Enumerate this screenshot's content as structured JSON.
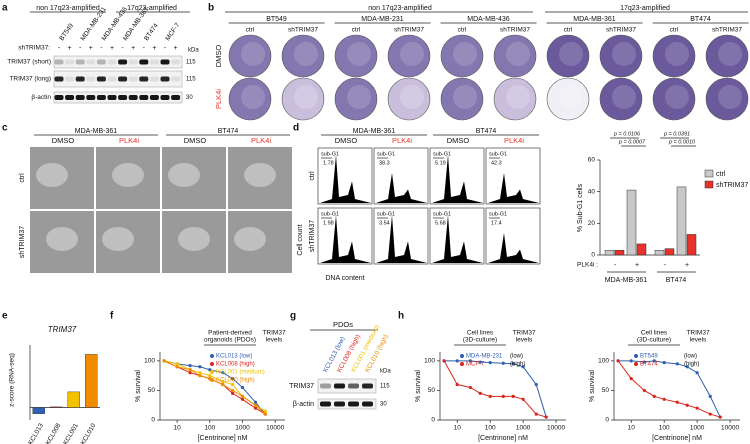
{
  "panel_letters": [
    "a",
    "b",
    "c",
    "d",
    "e",
    "f",
    "g",
    "h"
  ],
  "a": {
    "groups": [
      "non 17q23-amplified",
      "17q23-amplified"
    ],
    "cell_lines": [
      "BT549",
      "MDA-MB-231",
      "MDA-MB-436",
      "MDA-MB-361",
      "BT474",
      "MCF-7"
    ],
    "sh_label": "shTRIM37:",
    "sh_signs": [
      "-",
      "+",
      "-",
      "+",
      "-",
      "+",
      "-",
      "+",
      "-",
      "+",
      "-",
      "+"
    ],
    "kda": "kDa",
    "rows": [
      "TRIM37 (short)",
      "TRIM37 (long)",
      "β-actin"
    ],
    "markers": [
      "115",
      "115",
      "30"
    ]
  },
  "b": {
    "groups": [
      "non 17q23-amplified",
      "17q23-amplified"
    ],
    "cell_lines": [
      "BT549",
      "MDA-MB-231",
      "MDA-MB-436",
      "MDA-MB-361",
      "BT474"
    ],
    "conditions": [
      "ctrl",
      "shTRIM37"
    ],
    "rows": [
      "DMSO",
      "PLK4i"
    ]
  },
  "c": {
    "cell_lines": [
      "MDA-MB-361",
      "BT474"
    ],
    "treatments": [
      "DMSO",
      "PLK4i"
    ],
    "rows": [
      "ctrl",
      "shTRIM37"
    ]
  },
  "d": {
    "cell_lines": [
      "MDA-MB-361",
      "BT474"
    ],
    "treatments": [
      "DMSO",
      "PLK4i"
    ],
    "rows": [
      "ctrl",
      "shTRIM37"
    ],
    "gate": "sub-G1",
    "percentages": [
      [
        1.78,
        38.3,
        5.19,
        42.3
      ],
      [
        1.98,
        3.54,
        5.68,
        17.4
      ]
    ],
    "y_label": "Cell count",
    "x_label": "DNA content",
    "chart": {
      "type": "bar",
      "y_label": "% Sub-G1 cells",
      "ylim": [
        0,
        60
      ],
      "yticks": [
        0,
        20,
        40,
        60
      ],
      "groups": [
        "MDA-MB-361",
        "BT474"
      ],
      "treatment_label": "PLK4i :",
      "treatment_signs": [
        "-",
        "+",
        "-",
        "+"
      ],
      "series": [
        {
          "name": "ctrl",
          "color": "#c8c8c8",
          "values": [
            3,
            41,
            3,
            43
          ]
        },
        {
          "name": "shTRIM37",
          "color": "#e8312a",
          "values": [
            3,
            7,
            4,
            13
          ]
        }
      ],
      "p_values": [
        "p = 0.0106",
        "p = 0.0007",
        "p = 0.0391",
        "p = 0.0010"
      ]
    }
  },
  "e": {
    "type": "bar",
    "title": "TRIM37",
    "y_label": "z-score (RNA-seq)",
    "categories": [
      "KCL013",
      "KCL008",
      "KCL001",
      "KCL010"
    ],
    "values": [
      -0.2,
      0.02,
      0.5,
      1.7
    ],
    "colors": [
      "#2e5fb0",
      "#d9261c",
      "#f2c200",
      "#f08c00"
    ],
    "ylim": [
      -0.4,
      2.0
    ]
  },
  "f": {
    "type": "line",
    "header": [
      "Patient-derived",
      "organoids (PDOs)"
    ],
    "levels_header": [
      "TRIM37",
      "levels"
    ],
    "y_label": "% survival",
    "x_label": "[Centrinone] nM",
    "log_x": true,
    "xlim": [
      3,
      20000
    ],
    "xticks": [
      10,
      100,
      1000,
      10000
    ],
    "ylim": [
      0,
      115
    ],
    "yticks": [
      0,
      50,
      100
    ],
    "x": [
      4,
      10,
      25,
      50,
      100,
      250,
      500,
      1000,
      2500,
      5000
    ],
    "series": [
      {
        "name": "KCL013 (low)",
        "color": "#2e5fb0",
        "values": [
          100,
          95,
          92,
          90,
          85,
          80,
          70,
          55,
          30,
          10
        ]
      },
      {
        "name": "KCL008 (high)",
        "color": "#d9261c",
        "values": [
          100,
          90,
          80,
          75,
          70,
          60,
          45,
          35,
          20,
          10
        ]
      },
      {
        "name": "KCL001 (medium)",
        "color": "#f2c200",
        "values": [
          100,
          95,
          85,
          80,
          75,
          65,
          60,
          40,
          25,
          15
        ]
      },
      {
        "name": "KCL010 (high)",
        "color": "#f08c00",
        "values": [
          100,
          90,
          85,
          75,
          70,
          60,
          50,
          40,
          25,
          10
        ]
      }
    ]
  },
  "g": {
    "title": "PDOs",
    "lanes": [
      "KCL013 (low)",
      "KCL008 (high)",
      "KCL001 (medium)",
      "KCL010 (high)"
    ],
    "lane_colors": [
      "#2e5fb0",
      "#d9261c",
      "#f2c200",
      "#f08c00"
    ],
    "kda": "kDa",
    "rows": [
      "TRIM37",
      "β-actin"
    ],
    "markers": [
      "115",
      "30"
    ]
  },
  "h": [
    {
      "type": "line",
      "header": [
        "Cell lines",
        "(3D-culture)"
      ],
      "levels_header": [
        "TRIM37",
        "levels"
      ],
      "levels": [
        "(low)",
        "(high)"
      ],
      "y_label": "% survival",
      "x_label": "[Centrinone] nM",
      "log_x": true,
      "xlim": [
        3,
        20000
      ],
      "xticks": [
        10,
        100,
        1000,
        10000
      ],
      "ylim": [
        0,
        115
      ],
      "yticks": [
        0,
        50,
        100
      ],
      "x": [
        4,
        10,
        25,
        50,
        100,
        250,
        500,
        1000,
        2500,
        5000
      ],
      "series": [
        {
          "name": "MDA-MB-231",
          "color": "#2e5fb0",
          "values": [
            100,
            100,
            100,
            98,
            97,
            96,
            95,
            90,
            60,
            5
          ]
        },
        {
          "name": "MCF-7",
          "color": "#d9261c",
          "values": [
            100,
            60,
            55,
            45,
            40,
            40,
            40,
            35,
            10,
            5
          ]
        }
      ]
    },
    {
      "type": "line",
      "header": [
        "Cell lines",
        "(3D-culture)"
      ],
      "levels_header": [
        "TRIM37",
        "levels"
      ],
      "levels": [
        "(low)",
        "(high)"
      ],
      "y_label": "% survival",
      "x_label": "[Centrinone] nM",
      "log_x": true,
      "xlim": [
        3,
        20000
      ],
      "xticks": [
        10,
        100,
        1000,
        10000
      ],
      "ylim": [
        0,
        115
      ],
      "yticks": [
        0,
        50,
        100
      ],
      "x": [
        4,
        10,
        25,
        50,
        100,
        250,
        500,
        1000,
        2500,
        5000
      ],
      "series": [
        {
          "name": "BT549",
          "color": "#2e5fb0",
          "values": [
            100,
            100,
            98,
            100,
            97,
            95,
            90,
            80,
            40,
            5
          ]
        },
        {
          "name": "BT474",
          "color": "#d9261c",
          "values": [
            100,
            70,
            50,
            40,
            35,
            30,
            25,
            20,
            10,
            5
          ]
        }
      ]
    }
  ]
}
